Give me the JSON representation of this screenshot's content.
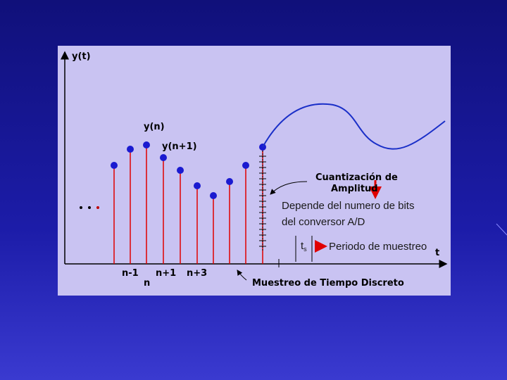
{
  "diagram": {
    "y_axis_label": "y(t)",
    "x_axis_label": "t",
    "sample_labels": {
      "yn": "y(n)",
      "yn1": "y(n+1)"
    },
    "index_labels": [
      "n-1",
      "n",
      "n+1",
      "n+3"
    ],
    "quantization_label": [
      "Cuantización de",
      "Amplitud"
    ],
    "bits_note": [
      "Depende del numero de bits",
      "del conversor A/D"
    ],
    "period_symbol": {
      "base": "t",
      "sub": "s"
    },
    "period_note": "Periodo de muestreo",
    "discrete_time_label": "Muestreo de Tiempo Discreto"
  }
}
